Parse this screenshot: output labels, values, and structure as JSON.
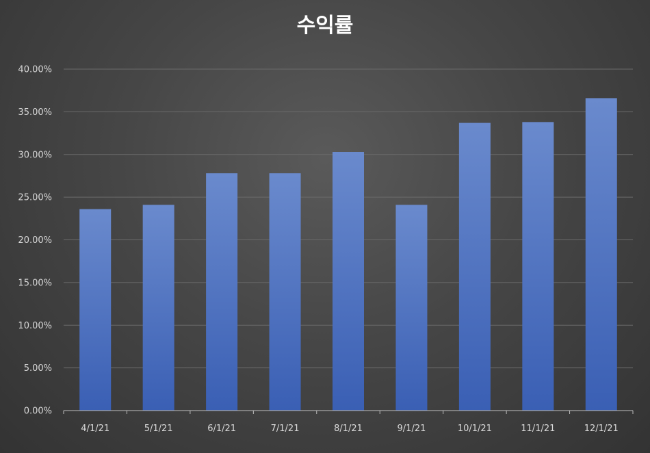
{
  "chart_data": {
    "type": "bar",
    "title": "수익률",
    "xlabel": "",
    "ylabel": "",
    "categories": [
      "4/1/21",
      "5/1/21",
      "6/1/21",
      "7/1/21",
      "8/1/21",
      "9/1/21",
      "10/1/21",
      "11/1/21",
      "12/1/21"
    ],
    "values": [
      0.236,
      0.241,
      0.278,
      0.278,
      0.303,
      0.241,
      0.337,
      0.338,
      0.366
    ],
    "ylim": [
      0,
      0.4
    ],
    "yticks": [
      "0.00%",
      "5.00%",
      "10.00%",
      "15.00%",
      "20.00%",
      "25.00%",
      "30.00%",
      "35.00%",
      "40.00%"
    ],
    "grid": true,
    "legend": "none",
    "colors": {
      "bar_top": "#6a8acd",
      "bar_bottom": "#3a5fb4",
      "grid": "#6b6b6b",
      "axis": "#bfbfbf"
    }
  }
}
